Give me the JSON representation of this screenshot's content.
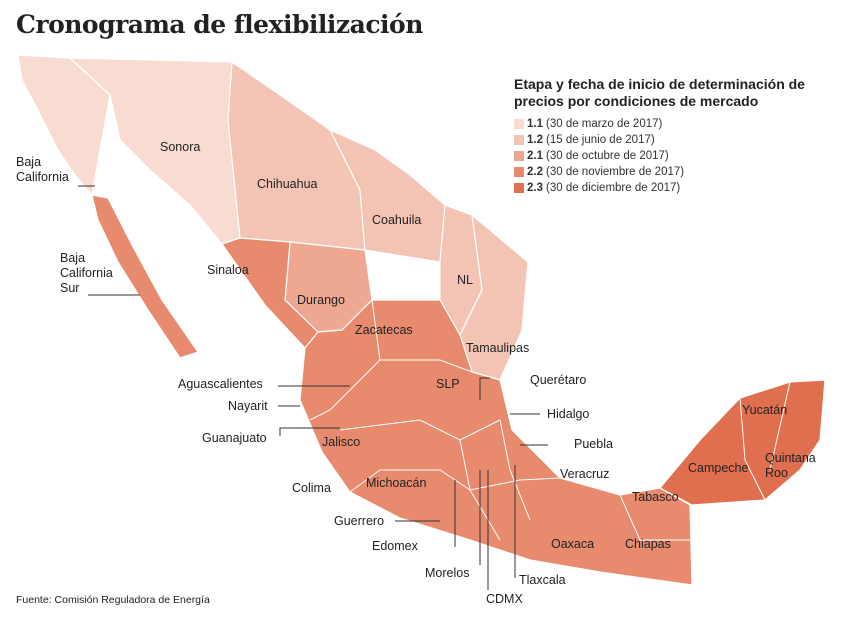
{
  "title": "Cronograma de flexibilización",
  "legend": {
    "title": "Etapa y fecha de inicio de determinación de precios por condiciones de mercado",
    "items": [
      {
        "stage": "1.1",
        "date": "(30 de marzo de 2017)",
        "color": "#f8dcd2"
      },
      {
        "stage": "1.2",
        "date": "(15 de junio de 2017)",
        "color": "#f3c3b3"
      },
      {
        "stage": "2.1",
        "date": "(30 de octubre de 2017)",
        "color": "#eea790"
      },
      {
        "stage": "2.2",
        "date": "(30 de noviembre de 2017)",
        "color": "#e88a6e"
      },
      {
        "stage": "2.3",
        "date": "(30 de diciembre de 2017)",
        "color": "#e06f4f"
      }
    ]
  },
  "states": {
    "baja_california": "Baja California",
    "sonora": "Sonora",
    "chihuahua": "Chihuahua",
    "coahuila": "Coahuila",
    "nl": "NL",
    "bcs": "Baja California Sur",
    "sinaloa": "Sinaloa",
    "durango": "Durango",
    "zacatecas": "Zacatecas",
    "tamaulipas": "Tamaulipas",
    "aguascalientes": "Aguascalientes",
    "slp": "SLP",
    "queretaro": "Querétaro",
    "nayarit": "Nayarit",
    "hidalgo": "Hidalgo",
    "guanajuato": "Guanajuato",
    "jalisco": "Jalisco",
    "puebla": "Puebla",
    "veracruz": "Veracruz",
    "colima": "Colima",
    "michoacan": "Michoacán",
    "guerrero": "Guerrero",
    "edomex": "Edomex",
    "morelos": "Morelos",
    "cdmx": "CDMX",
    "tlaxcala": "Tlaxcala",
    "oaxaca": "Oaxaca",
    "chiapas": "Chiapas",
    "tabasco": "Tabasco",
    "campeche": "Campeche",
    "yucatan": "Yucatán",
    "quintana_roo": "Quintana Roo"
  },
  "source": "Fuente: Comisión Reguladora de Energía"
}
